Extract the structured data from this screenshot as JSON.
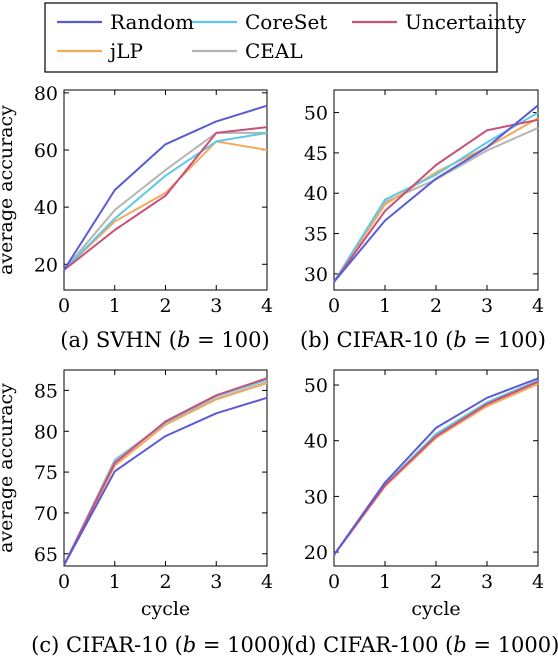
{
  "legend": {
    "items": [
      {
        "label": "Random",
        "color": "#5b5bd6"
      },
      {
        "label": "CoreSet",
        "color": "#5ec8e8"
      },
      {
        "label": "Uncertainty",
        "color": "#c8507a"
      },
      {
        "label": "jLP",
        "color": "#f5a95e"
      },
      {
        "label": "CEAL",
        "color": "#b4b4b4"
      }
    ]
  },
  "chart_data": [
    {
      "type": "line",
      "caption": "(a) SVHN (b = 100)",
      "ylabel": "average accuracy",
      "xlabel": "",
      "x": [
        0,
        1,
        2,
        3,
        4
      ],
      "xticks": [
        0,
        1,
        2,
        3,
        4
      ],
      "yticks": [
        20,
        40,
        60,
        80
      ],
      "xlim": [
        0,
        4
      ],
      "ylim": [
        11,
        81
      ],
      "series": [
        {
          "name": "Random",
          "color": "#5b5bd6",
          "values": [
            18,
            46,
            62,
            70,
            75.5
          ]
        },
        {
          "name": "CoreSet",
          "color": "#5ec8e8",
          "values": [
            18,
            36,
            51,
            63,
            66
          ]
        },
        {
          "name": "Uncertainty",
          "color": "#c8507a",
          "values": [
            18,
            32,
            44,
            66,
            68
          ]
        },
        {
          "name": "jLP",
          "color": "#f5a95e",
          "values": [
            18,
            35,
            45,
            63,
            60
          ]
        },
        {
          "name": "CEAL",
          "color": "#b4b4b4",
          "values": [
            18,
            39,
            53,
            66,
            66
          ]
        }
      ]
    },
    {
      "type": "line",
      "caption": "(b) CIFAR-10 (b = 100)",
      "ylabel": "",
      "xlabel": "",
      "x": [
        0,
        1,
        2,
        3,
        4
      ],
      "xticks": [
        0,
        1,
        2,
        3,
        4
      ],
      "yticks": [
        30,
        35,
        40,
        45,
        50
      ],
      "xlim": [
        0,
        4
      ],
      "ylim": [
        28,
        52.8
      ],
      "series": [
        {
          "name": "Random",
          "color": "#5b5bd6",
          "values": [
            29,
            36.6,
            41.8,
            45.7,
            50.9
          ]
        },
        {
          "name": "CoreSet",
          "color": "#5ec8e8",
          "values": [
            29,
            39.2,
            42.3,
            46.3,
            50
          ]
        },
        {
          "name": "Uncertainty",
          "color": "#c8507a",
          "values": [
            29,
            37.8,
            43.5,
            47.8,
            49.1
          ]
        },
        {
          "name": "jLP",
          "color": "#f5a95e",
          "values": [
            29,
            38.6,
            42.6,
            45.7,
            49.3
          ]
        },
        {
          "name": "CEAL",
          "color": "#b4b4b4",
          "values": [
            29,
            38.9,
            41.7,
            45.3,
            48.1
          ]
        }
      ]
    },
    {
      "type": "line",
      "caption": "(c) CIFAR-10 (b = 1000)",
      "ylabel": "average accuracy",
      "xlabel": "cycle",
      "x": [
        0,
        1,
        2,
        3,
        4
      ],
      "xticks": [
        0,
        1,
        2,
        3,
        4
      ],
      "yticks": [
        65,
        70,
        75,
        80,
        85
      ],
      "xlim": [
        0,
        4
      ],
      "ylim": [
        63.5,
        87.5
      ],
      "series": [
        {
          "name": "Random",
          "color": "#5b5bd6",
          "values": [
            63.6,
            75.1,
            79.4,
            82.2,
            84.1
          ]
        },
        {
          "name": "CoreSet",
          "color": "#5ec8e8",
          "values": [
            63.6,
            76.3,
            81.1,
            84.3,
            86.3
          ]
        },
        {
          "name": "Uncertainty",
          "color": "#c8507a",
          "values": [
            63.6,
            76.1,
            81.2,
            84.4,
            86.5
          ]
        },
        {
          "name": "jLP",
          "color": "#f5a95e",
          "values": [
            63.6,
            75.8,
            80.8,
            83.9,
            85.9
          ]
        },
        {
          "name": "CEAL",
          "color": "#b4b4b4",
          "values": [
            63.6,
            76.5,
            81.0,
            84.0,
            86.0
          ]
        }
      ]
    },
    {
      "type": "line",
      "caption": "(d) CIFAR-100 (b = 1000)",
      "ylabel": "",
      "xlabel": "cycle",
      "x": [
        0,
        1,
        2,
        3,
        4
      ],
      "xticks": [
        0,
        1,
        2,
        3,
        4
      ],
      "yticks": [
        20,
        30,
        40,
        50
      ],
      "xlim": [
        0,
        4
      ],
      "ylim": [
        17.5,
        52.7
      ],
      "series": [
        {
          "name": "Random",
          "color": "#5b5bd6",
          "values": [
            19.5,
            32.5,
            42.3,
            47.7,
            51.2
          ]
        },
        {
          "name": "CoreSet",
          "color": "#5ec8e8",
          "values": [
            19.5,
            32.1,
            41.2,
            46.9,
            50.8
          ]
        },
        {
          "name": "Uncertainty",
          "color": "#c8507a",
          "values": [
            19.5,
            32.0,
            40.8,
            46.6,
            50.6
          ]
        },
        {
          "name": "jLP",
          "color": "#f5a95e",
          "values": [
            19.5,
            31.8,
            40.5,
            46.2,
            50.2
          ]
        },
        {
          "name": "CEAL",
          "color": "#b4b4b4",
          "values": [
            19.5,
            31.9,
            40.9,
            46.5,
            50.5
          ]
        }
      ]
    }
  ]
}
